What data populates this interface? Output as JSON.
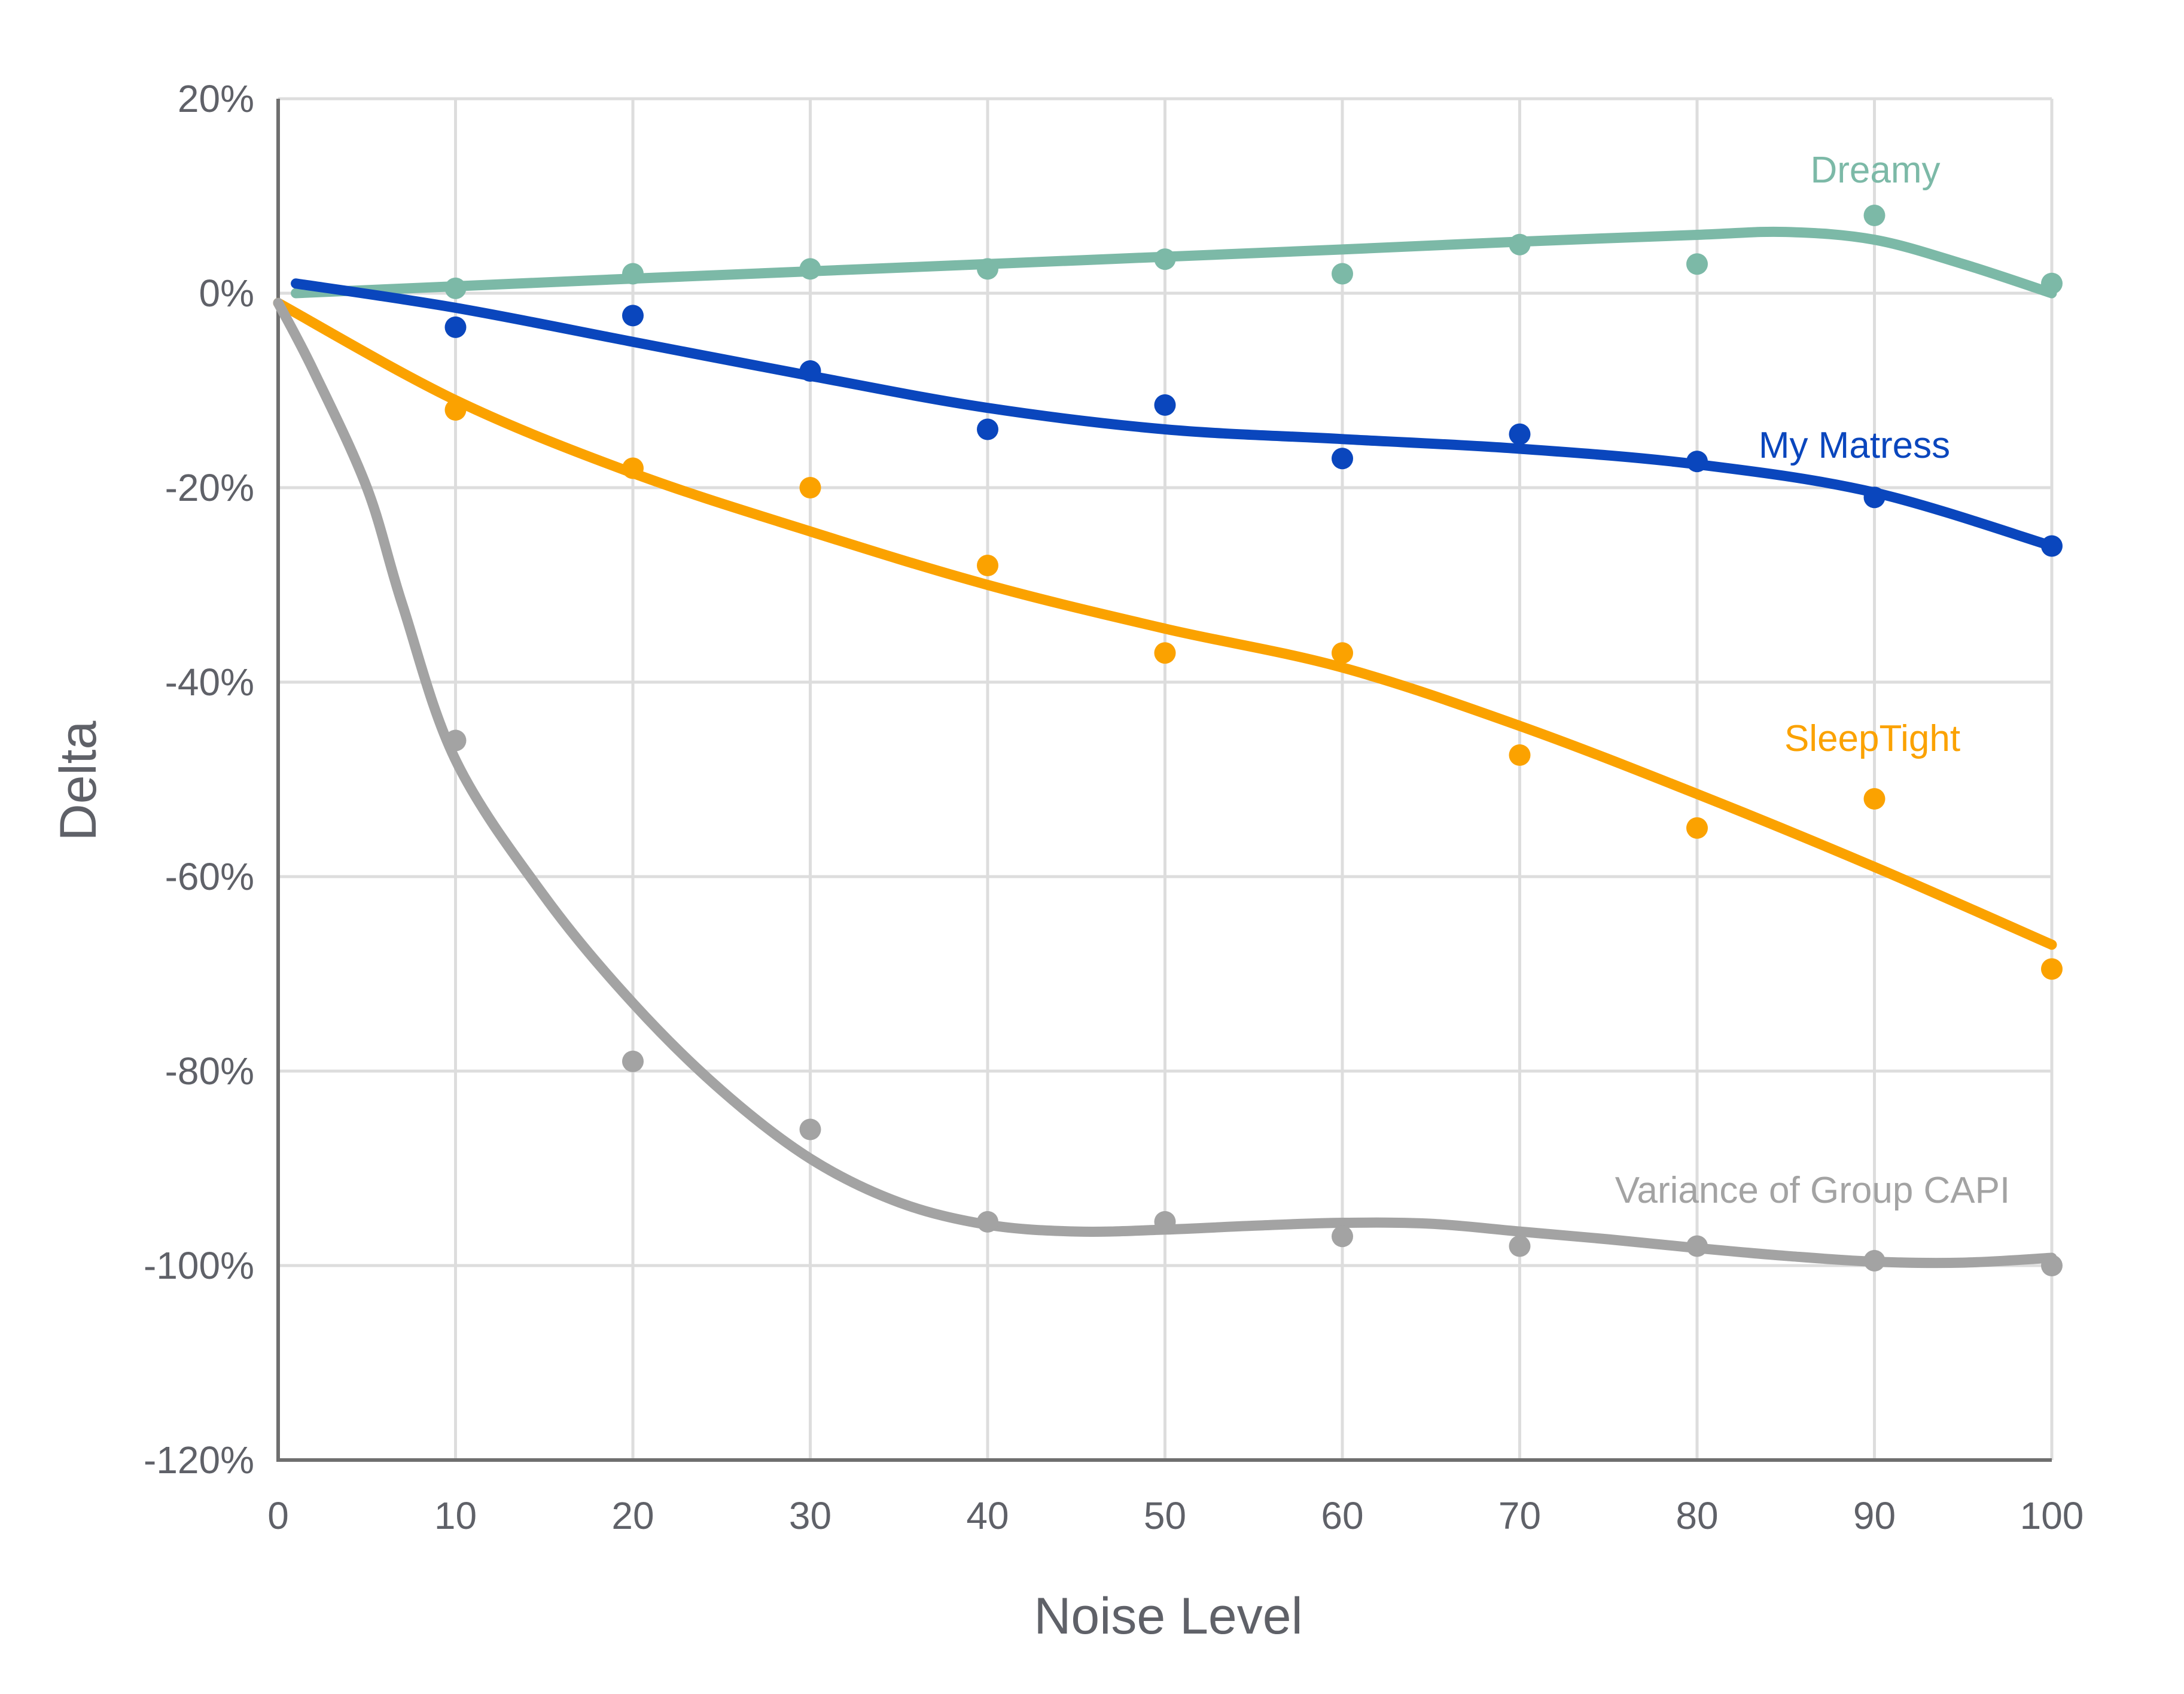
{
  "chart_data": {
    "type": "scatter",
    "title": "",
    "xlabel": "Noise Level",
    "ylabel": "Delta",
    "xlim": [
      0,
      100
    ],
    "ylim": [
      -120,
      20
    ],
    "x_ticks": [
      "0",
      "10",
      "20",
      "30",
      "40",
      "50",
      "60",
      "70",
      "80",
      "90",
      "100"
    ],
    "y_ticks": [
      "20%",
      "0%",
      "-20%",
      "-40%",
      "-60%",
      "-80%",
      "-100%",
      "-120%"
    ],
    "grid": true,
    "legend": "inline-labels",
    "series": [
      {
        "name": "Dreamy",
        "color": "#7cb9a7",
        "x": [
          10,
          20,
          30,
          40,
          50,
          60,
          70,
          80,
          90,
          100
        ],
        "y": [
          0.5,
          2,
          2.5,
          2.5,
          3.5,
          2,
          5,
          3,
          8,
          1
        ],
        "trend": [
          [
            1,
            0
          ],
          [
            20,
            1.5
          ],
          [
            40,
            3
          ],
          [
            60,
            4.5
          ],
          [
            70,
            5.3
          ],
          [
            80,
            6
          ],
          [
            85,
            6.3
          ],
          [
            90,
            5.5
          ],
          [
            95,
            3
          ],
          [
            100,
            0
          ]
        ]
      },
      {
        "name": "My Matress",
        "color": "#0a46bd",
        "x": [
          10,
          20,
          30,
          40,
          50,
          60,
          70,
          80,
          90,
          100
        ],
        "y": [
          -3.5,
          -2.3,
          -8,
          -14,
          -11.5,
          -17,
          -14.5,
          -17.3,
          -21,
          -26
        ],
        "trend": [
          [
            1,
            1
          ],
          [
            10,
            -1.5
          ],
          [
            20,
            -5
          ],
          [
            30,
            -8.5
          ],
          [
            40,
            -11.8
          ],
          [
            50,
            -14
          ],
          [
            60,
            -15
          ],
          [
            70,
            -16
          ],
          [
            80,
            -17.6
          ],
          [
            90,
            -20.5
          ],
          [
            100,
            -26
          ]
        ]
      },
      {
        "name": "SleepTight",
        "color": "#fba200",
        "x": [
          10,
          20,
          30,
          40,
          50,
          60,
          70,
          80,
          90,
          100
        ],
        "y": [
          -12,
          -18,
          -20,
          -28,
          -37,
          -37,
          -47.5,
          -55,
          -52,
          -69.5
        ],
        "trend": [
          [
            0,
            -1
          ],
          [
            10,
            -11
          ],
          [
            20,
            -18.5
          ],
          [
            30,
            -24.5
          ],
          [
            40,
            -30
          ],
          [
            50,
            -34.5
          ],
          [
            60,
            -38.5
          ],
          [
            70,
            -44.5
          ],
          [
            80,
            -51.5
          ],
          [
            90,
            -59
          ],
          [
            100,
            -67
          ]
        ]
      },
      {
        "name": "Variance of Group CAPI",
        "color": "#a3a3a3",
        "x": [
          10,
          20,
          30,
          40,
          50,
          60,
          70,
          80,
          90,
          100
        ],
        "y": [
          -46,
          -79,
          -86,
          -95.5,
          -95.5,
          -97,
          -98,
          -98,
          -99.5,
          -100
        ],
        "trend": [
          [
            0,
            -1
          ],
          [
            2,
            -8
          ],
          [
            5,
            -20
          ],
          [
            7,
            -32
          ],
          [
            10,
            -48
          ],
          [
            15,
            -62
          ],
          [
            20,
            -73
          ],
          [
            25,
            -82
          ],
          [
            30,
            -89
          ],
          [
            35,
            -93.5
          ],
          [
            40,
            -95.8
          ],
          [
            45,
            -96.5
          ],
          [
            50,
            -96.3
          ],
          [
            55,
            -95.9
          ],
          [
            60,
            -95.6
          ],
          [
            65,
            -95.7
          ],
          [
            70,
            -96.5
          ],
          [
            75,
            -97.3
          ],
          [
            80,
            -98.2
          ],
          [
            85,
            -99
          ],
          [
            90,
            -99.6
          ],
          [
            95,
            -99.7
          ],
          [
            100,
            -99.2
          ]
        ]
      }
    ]
  }
}
